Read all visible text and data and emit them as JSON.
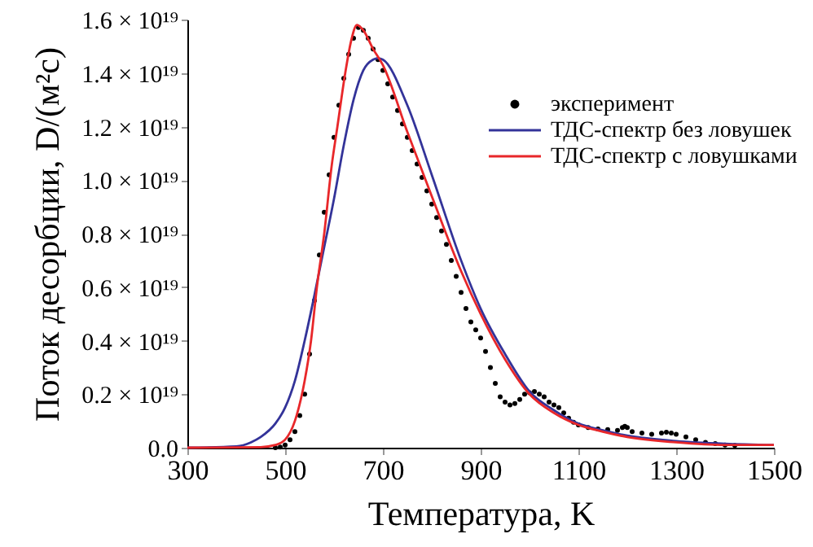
{
  "chart_data": {
    "type": "line",
    "xlabel": "Температура, K",
    "ylabel": "Поток десорбции, D/(м²с)",
    "xlim": [
      300,
      1500
    ],
    "xticks": [
      300,
      500,
      700,
      900,
      1100,
      1300,
      1500
    ],
    "ylim": [
      0,
      1.6e+19
    ],
    "yticks": [
      {
        "value": 0,
        "label": "0.0"
      },
      {
        "value": 2e+18,
        "label": "0.2 × 10¹⁹"
      },
      {
        "value": 4e+18,
        "label": "0.4 × 10¹⁹"
      },
      {
        "value": 6e+18,
        "label": "0.6 × 10¹⁹"
      },
      {
        "value": 8e+18,
        "label": "0.8 × 10¹⁹"
      },
      {
        "value": 1e+19,
        "label": "1.0 × 10¹⁹"
      },
      {
        "value": 1.2e+19,
        "label": "1.2 × 10¹⁹"
      },
      {
        "value": 1.4e+19,
        "label": "1.4 × 10¹⁹"
      },
      {
        "value": 1.6e+19,
        "label": "1.6 × 10¹⁹"
      }
    ],
    "grid": false,
    "legend": "top right",
    "series": [
      {
        "name": "эксперимент",
        "type": "scatter",
        "marker": "circle",
        "color": "#000000",
        "x": [
          480,
          490,
          500,
          510,
          520,
          530,
          540,
          550,
          560,
          570,
          580,
          590,
          600,
          610,
          620,
          630,
          640,
          650,
          660,
          670,
          680,
          690,
          700,
          710,
          720,
          730,
          740,
          750,
          760,
          770,
          780,
          790,
          800,
          810,
          820,
          830,
          840,
          850,
          860,
          870,
          880,
          890,
          900,
          910,
          920,
          930,
          940,
          950,
          960,
          970,
          980,
          990,
          1000,
          1010,
          1020,
          1030,
          1040,
          1050,
          1060,
          1070,
          1080,
          1090,
          1100,
          1120,
          1140,
          1160,
          1180,
          1190,
          1195,
          1200,
          1210,
          1230,
          1250,
          1270,
          1280,
          1290,
          1300,
          1320,
          1340,
          1360,
          1380,
          1400,
          1420
        ],
        "values": [
          0,
          2e+16,
          1e+17,
          3e+17,
          6e+17,
          1.2e+18,
          2e+18,
          3.5e+18,
          5.5e+18,
          7.2e+18,
          8.8e+18,
          1.02e+19,
          1.16e+19,
          1.28e+19,
          1.38e+19,
          1.47e+19,
          1.53e+19,
          1.57e+19,
          1.56e+19,
          1.53e+19,
          1.49e+19,
          1.45e+19,
          1.41e+19,
          1.36e+19,
          1.31e+19,
          1.26e+19,
          1.21e+19,
          1.16e+19,
          1.11e+19,
          1.06e+19,
          1.01e+19,
          9.6e+18,
          9.1e+18,
          8.6e+18,
          8.1e+18,
          7.6e+18,
          7e+18,
          6.4e+18,
          5.8e+18,
          5.2e+18,
          4.7e+18,
          4.4e+18,
          4.1e+18,
          3.6e+18,
          3e+18,
          2.4e+18,
          1.9e+18,
          1.7e+18,
          1.6e+18,
          1.65e+18,
          1.8e+18,
          2e+18,
          2.05e+18,
          2.1e+18,
          2e+18,
          1.9e+18,
          1.7e+18,
          1.6e+18,
          1.5e+18,
          1.3e+18,
          1.1e+18,
          9.5e+17,
          8.5e+17,
          7.5e+17,
          7e+17,
          6.8e+17,
          6.5e+17,
          7.5e+17,
          8e+17,
          7.5e+17,
          6e+17,
          5.5e+17,
          5e+17,
          5.5e+17,
          5.8e+17,
          5.5e+17,
          5e+17,
          4e+17,
          3e+17,
          2e+17,
          1.5e+17,
          1e+17,
          8e+16
        ]
      },
      {
        "name": "ТДС-спектр без ловушек",
        "color": "#333399",
        "x": [
          300,
          400,
          430,
          450,
          480,
          500,
          520,
          540,
          560,
          580,
          600,
          620,
          640,
          660,
          680,
          690,
          700,
          750,
          800,
          860,
          900,
          950,
          1000,
          1050,
          1100,
          1150,
          1200,
          1300,
          1400,
          1500
        ],
        "values": [
          0,
          5e+16,
          2e+17,
          4e+17,
          9e+17,
          1.5e+18,
          2.5e+18,
          4e+18,
          5.7e+18,
          7.5e+18,
          9.3e+18,
          1.13e+19,
          1.3e+19,
          1.41e+19,
          1.45e+19,
          1.455e+19,
          1.45e+19,
          1.28e+19,
          1.02e+19,
          7e+18,
          5.2e+18,
          3.5e+18,
          2.1e+18,
          1.4e+18,
          9e+17,
          6.5e+17,
          4.5e+17,
          2.5e+17,
          1.5e+17,
          1e+17
        ]
      },
      {
        "name": "ТДС-спектр с ловушками",
        "color": "#e8272a",
        "x": [
          300,
          450,
          480,
          500,
          520,
          540,
          553,
          565,
          580,
          595,
          607,
          623,
          635,
          647,
          660,
          680,
          700,
          750,
          800,
          860,
          900,
          950,
          1000,
          1050,
          1100,
          1150,
          1200,
          1300,
          1400,
          1500
        ],
        "values": [
          0,
          2e+16,
          1e+17,
          3e+17,
          1e+18,
          2.5e+18,
          4e+18,
          6e+18,
          8e+18,
          1.05e+19,
          1.2e+19,
          1.4e+19,
          1.52e+19,
          1.58e+19,
          1.56e+19,
          1.49e+19,
          1.43e+19,
          1.18e+19,
          9.4e+18,
          6.6e+18,
          5e+18,
          3.3e+18,
          2e+18,
          1.3e+18,
          8.5e+17,
          6e+17,
          4e+17,
          2e+17,
          1e+17,
          1e+17
        ]
      }
    ]
  }
}
